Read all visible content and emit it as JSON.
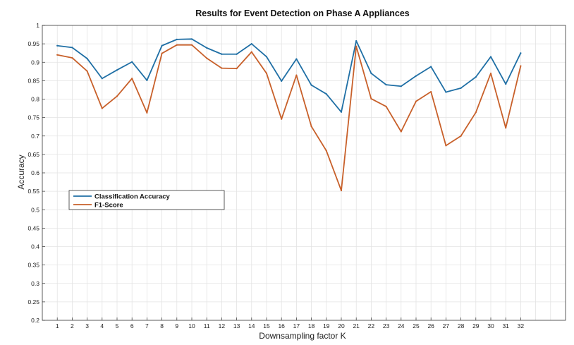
{
  "chart_data": {
    "type": "line",
    "title": "Results for Event Detection on Phase A Appliances",
    "xlabel": "Downsampling factor K",
    "ylabel": "Accuracy",
    "x": [
      1,
      2,
      3,
      4,
      5,
      6,
      7,
      8,
      9,
      10,
      11,
      12,
      13,
      14,
      15,
      16,
      17,
      18,
      19,
      20,
      21,
      22,
      23,
      24,
      25,
      26,
      27,
      28,
      29,
      30,
      31,
      32
    ],
    "xlim": [
      0,
      35
    ],
    "ylim": [
      0.2,
      1
    ],
    "yticks": [
      "0.2",
      "0.25",
      "0.3",
      "0.35",
      "0.4",
      "0.45",
      "0.5",
      "0.55",
      "0.6",
      "0.65",
      "0.7",
      "0.75",
      "0.8",
      "0.85",
      "0.9",
      "0.95",
      "1"
    ],
    "grid": true,
    "legend_position": "middle-left",
    "series": [
      {
        "name": "Classification Accuracy",
        "color": "#1f6fa5",
        "values": [
          0.945,
          0.94,
          0.91,
          0.856,
          0.879,
          0.901,
          0.851,
          0.945,
          0.962,
          0.963,
          0.939,
          0.922,
          0.922,
          0.95,
          0.915,
          0.849,
          0.909,
          0.838,
          0.814,
          0.765,
          0.958,
          0.87,
          0.839,
          0.835,
          0.863,
          0.888,
          0.819,
          0.83,
          0.86,
          0.915,
          0.841,
          0.925
        ]
      },
      {
        "name": "F1-Score",
        "color": "#c8602a",
        "values": [
          0.92,
          0.912,
          0.876,
          0.775,
          0.808,
          0.856,
          0.763,
          0.924,
          0.947,
          0.947,
          0.911,
          0.884,
          0.883,
          0.928,
          0.87,
          0.746,
          0.865,
          0.726,
          0.66,
          0.552,
          0.943,
          0.801,
          0.78,
          0.712,
          0.794,
          0.82,
          0.674,
          0.7,
          0.764,
          0.87,
          0.722,
          0.89
        ]
      }
    ]
  }
}
